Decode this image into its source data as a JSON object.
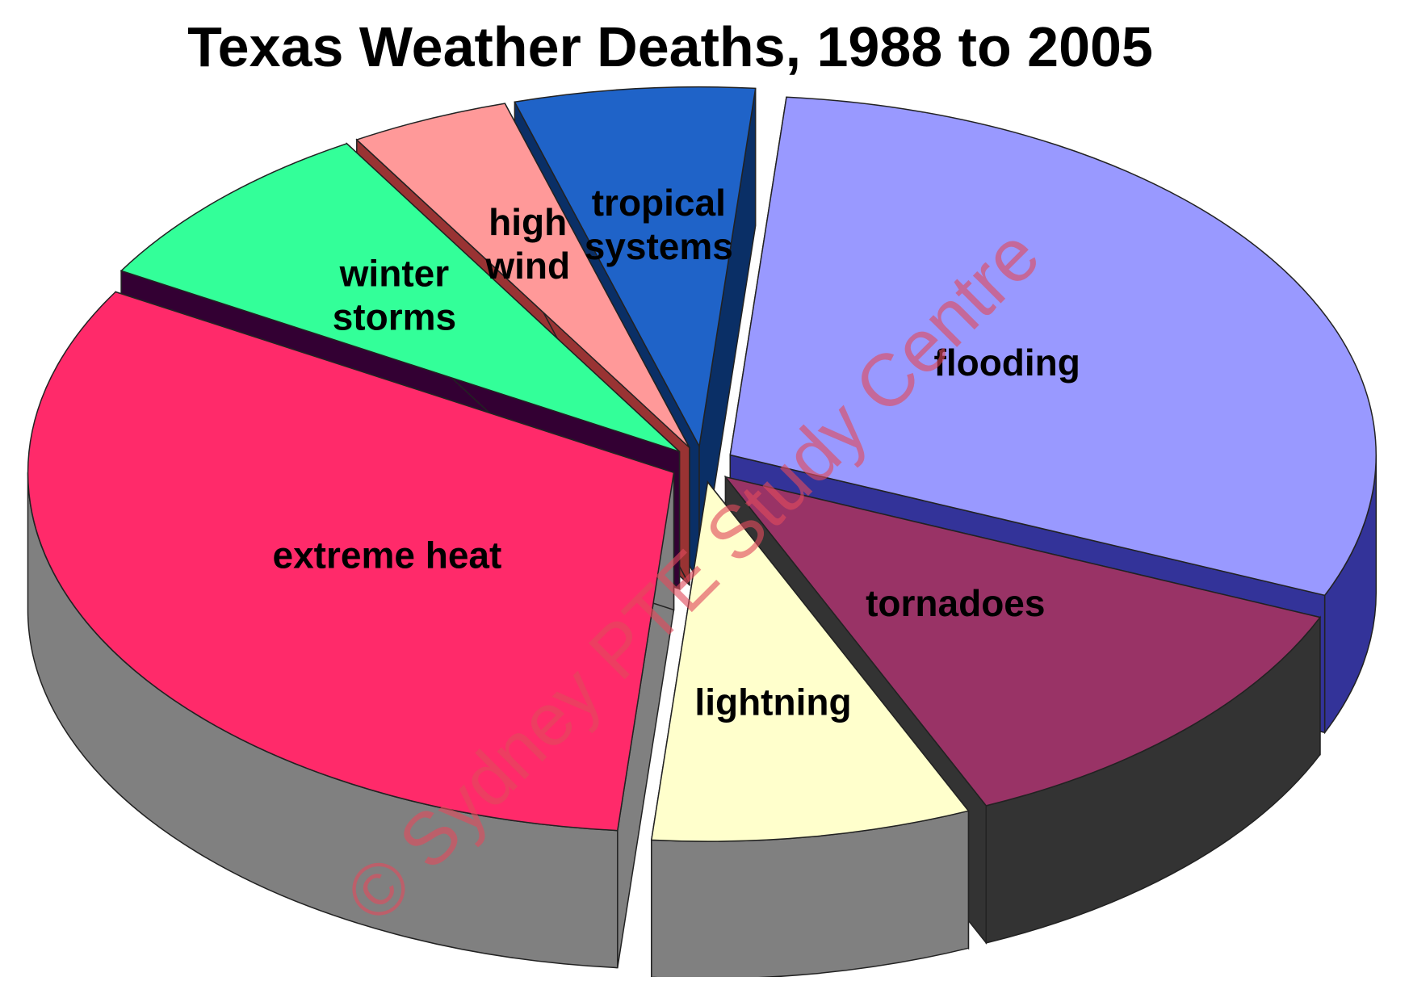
{
  "chart_data": {
    "type": "pie",
    "title": "Texas Weather Deaths, 1988 to 2005",
    "three_d": true,
    "exploded": true,
    "legend": "none",
    "slices": [
      {
        "label": "flooding",
        "value": 30,
        "color": "#9999FF",
        "side_color": "#333399"
      },
      {
        "label": "tornadoes",
        "value": 12,
        "color": "#993366",
        "side_color": "#333333"
      },
      {
        "label": "lightning",
        "value": 8,
        "color": "#FFFFCC",
        "side_color": "#808080"
      },
      {
        "label": "extreme heat",
        "value": 32,
        "color": "#FF2A6A",
        "side_color": "#808080"
      },
      {
        "label": "winter storms",
        "value": 8,
        "color": "#33FF99",
        "side_color": "#330033"
      },
      {
        "label": "high wind",
        "value": 4,
        "color": "#FF9999",
        "side_color": "#993333"
      },
      {
        "label": "tropical systems",
        "value": 6,
        "color": "#1F63C8",
        "side_color": "#0A2F66"
      }
    ]
  },
  "watermark": "© Sydney PTE Study Centre"
}
